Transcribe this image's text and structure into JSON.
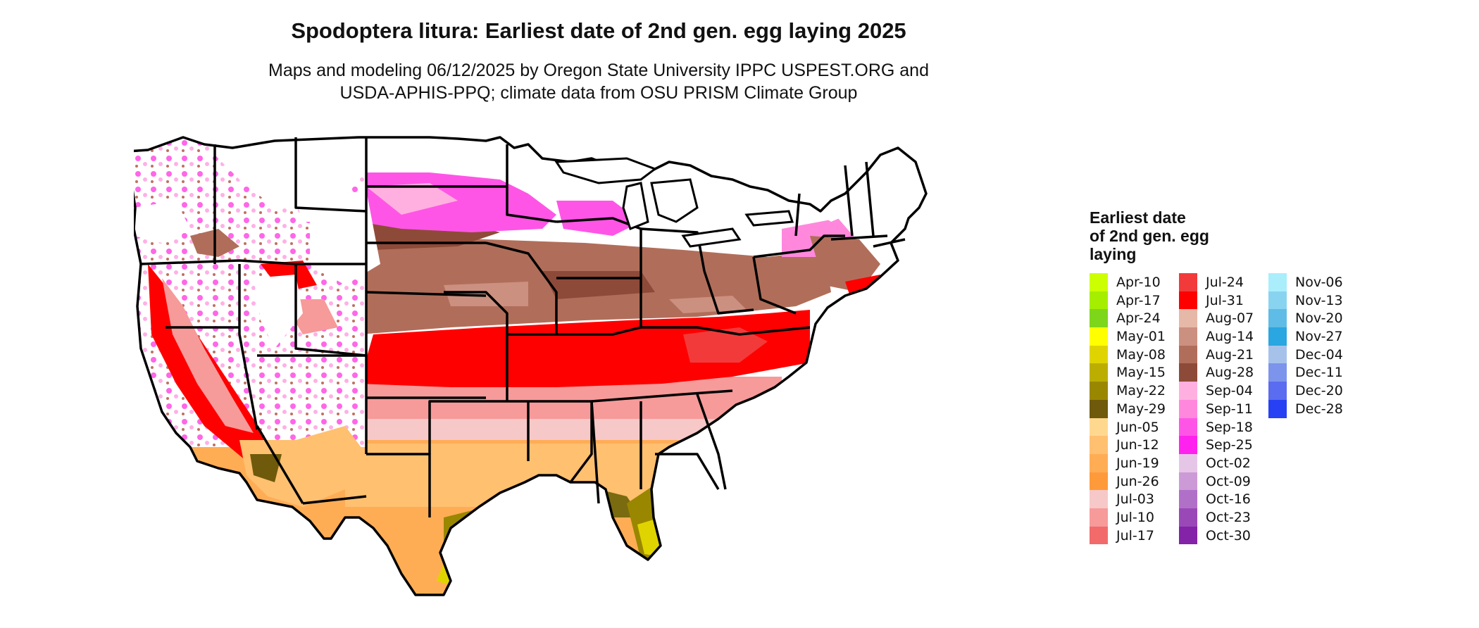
{
  "title": "Spodoptera litura: Earliest date of 2nd gen. egg laying 2025",
  "subtitle_lines": [
    "Maps and modeling 06/12/2025 by Oregon State University IPPC USPEST.ORG and",
    "USDA-APHIS-PPQ; climate data from OSU PRISM Climate Group"
  ],
  "legend": {
    "title_lines": [
      "Earliest date",
      "of 2nd gen. egg",
      "laying"
    ],
    "items": [
      {
        "label": "Apr-10",
        "color": "#ccff00"
      },
      {
        "label": "Apr-17",
        "color": "#a6ee00"
      },
      {
        "label": "Apr-24",
        "color": "#7ed61a"
      },
      {
        "label": "May-01",
        "color": "#ffff00"
      },
      {
        "label": "May-08",
        "color": "#e0d400"
      },
      {
        "label": "May-15",
        "color": "#bcae00"
      },
      {
        "label": "May-22",
        "color": "#9a8700"
      },
      {
        "label": "May-29",
        "color": "#6e5a0a"
      },
      {
        "label": "Jun-05",
        "color": "#ffd890"
      },
      {
        "label": "Jun-12",
        "color": "#ffc070"
      },
      {
        "label": "Jun-19",
        "color": "#ffad55"
      },
      {
        "label": "Jun-26",
        "color": "#ff9a3a"
      },
      {
        "label": "Jul-03",
        "color": "#f6c8c8"
      },
      {
        "label": "Jul-10",
        "color": "#f79a9a"
      },
      {
        "label": "Jul-17",
        "color": "#f26a6a"
      },
      {
        "label": "Jul-24",
        "color": "#f23a3a"
      },
      {
        "label": "Jul-31",
        "color": "#ff0000"
      },
      {
        "label": "Aug-07",
        "color": "#e6b8a8"
      },
      {
        "label": "Aug-14",
        "color": "#cc9080"
      },
      {
        "label": "Aug-21",
        "color": "#b06e5a"
      },
      {
        "label": "Aug-28",
        "color": "#8e4a38"
      },
      {
        "label": "Sep-04",
        "color": "#ffb0e0"
      },
      {
        "label": "Sep-11",
        "color": "#ff88dd"
      },
      {
        "label": "Sep-18",
        "color": "#ff55e6"
      },
      {
        "label": "Sep-25",
        "color": "#ff22ee"
      },
      {
        "label": "Oct-02",
        "color": "#e6c6e6"
      },
      {
        "label": "Oct-09",
        "color": "#cc9ad6"
      },
      {
        "label": "Oct-16",
        "color": "#b070c8"
      },
      {
        "label": "Oct-23",
        "color": "#9a48b8"
      },
      {
        "label": "Oct-30",
        "color": "#8422a8"
      },
      {
        "label": "Nov-06",
        "color": "#aaeefc"
      },
      {
        "label": "Nov-13",
        "color": "#88d4f0"
      },
      {
        "label": "Nov-20",
        "color": "#5ebce6"
      },
      {
        "label": "Nov-27",
        "color": "#2aa6e0"
      },
      {
        "label": "Dec-04",
        "color": "#a6c2ea"
      },
      {
        "label": "Dec-11",
        "color": "#7c94ec"
      },
      {
        "label": "Dec-20",
        "color": "#5a6cf0"
      },
      {
        "label": "Dec-28",
        "color": "#2840f4"
      }
    ]
  }
}
